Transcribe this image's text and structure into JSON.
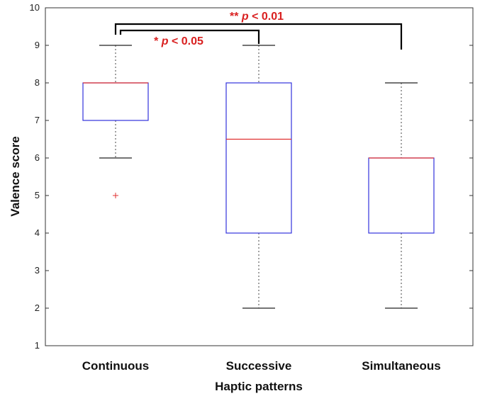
{
  "chart_data": {
    "type": "box",
    "xlabel": "Haptic patterns",
    "ylabel": "Valence score",
    "ylim": [
      1,
      10
    ],
    "yticks": [
      1,
      2,
      3,
      4,
      5,
      6,
      7,
      8,
      9,
      10
    ],
    "grid": false,
    "categories": [
      "Continuous",
      "Successive",
      "Simultaneous"
    ],
    "boxes": [
      {
        "category": "Continuous",
        "whisker_low": 6,
        "q1": 7,
        "median": 8,
        "q3": 8,
        "whisker_high": 9,
        "outliers": [
          5
        ]
      },
      {
        "category": "Successive",
        "whisker_low": 2,
        "q1": 4,
        "median": 6.5,
        "q3": 8,
        "whisker_high": 9,
        "outliers": []
      },
      {
        "category": "Simultaneous",
        "whisker_low": 2,
        "q1": 4,
        "median": 6,
        "q3": 6,
        "whisker_high": 8,
        "outliers": []
      }
    ],
    "significance": [
      {
        "from": "Continuous",
        "to": "Simultaneous",
        "stars": "**",
        "p_symbol": "p",
        "relation": "< 0.01"
      },
      {
        "from": "Continuous",
        "to": "Successive",
        "stars": "*",
        "p_symbol": "p",
        "relation": "< 0.05"
      }
    ]
  },
  "colors": {
    "box": "#3333dd",
    "median": "#e03030",
    "outlier": "#e03030",
    "whisker": "#444444",
    "significance_text": "#d92020",
    "bracket": "#000000"
  }
}
